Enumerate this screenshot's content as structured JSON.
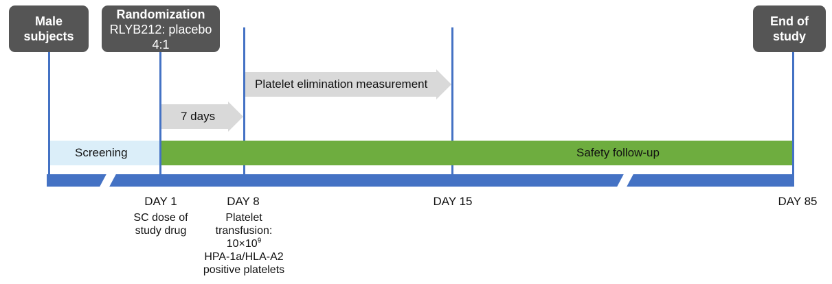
{
  "boxes": {
    "male": {
      "line1": "Male",
      "line2": "subjects"
    },
    "randomization": {
      "title": "Randomization",
      "line1": "RLYB212: placebo",
      "line2": "4:1"
    },
    "end": {
      "line1": "End of",
      "line2": "study"
    }
  },
  "arrows": {
    "seven_days": "7 days",
    "elimination": "Platelet elimination measurement"
  },
  "bars": {
    "screening": "Screening",
    "safety": "Safety follow-up"
  },
  "days": {
    "day1": "DAY 1",
    "day8": "DAY 8",
    "day15": "DAY 15",
    "day85": "DAY 85"
  },
  "notes": {
    "day1": [
      "SC dose of",
      "study drug"
    ],
    "day8": {
      "line1": "Platelet",
      "line2": "transfusion:",
      "dose_base": "10×10",
      "dose_exp": "9",
      "line4": "HPA-1a/HLA-A2",
      "line5": "positive platelets"
    }
  },
  "colors": {
    "timeline_blue": "#4472c4",
    "box_gray": "#555555",
    "arrow_gray": "#d9d9d9",
    "screening_fill": "#dbeef9",
    "safety_fill": "#6ead3f"
  }
}
